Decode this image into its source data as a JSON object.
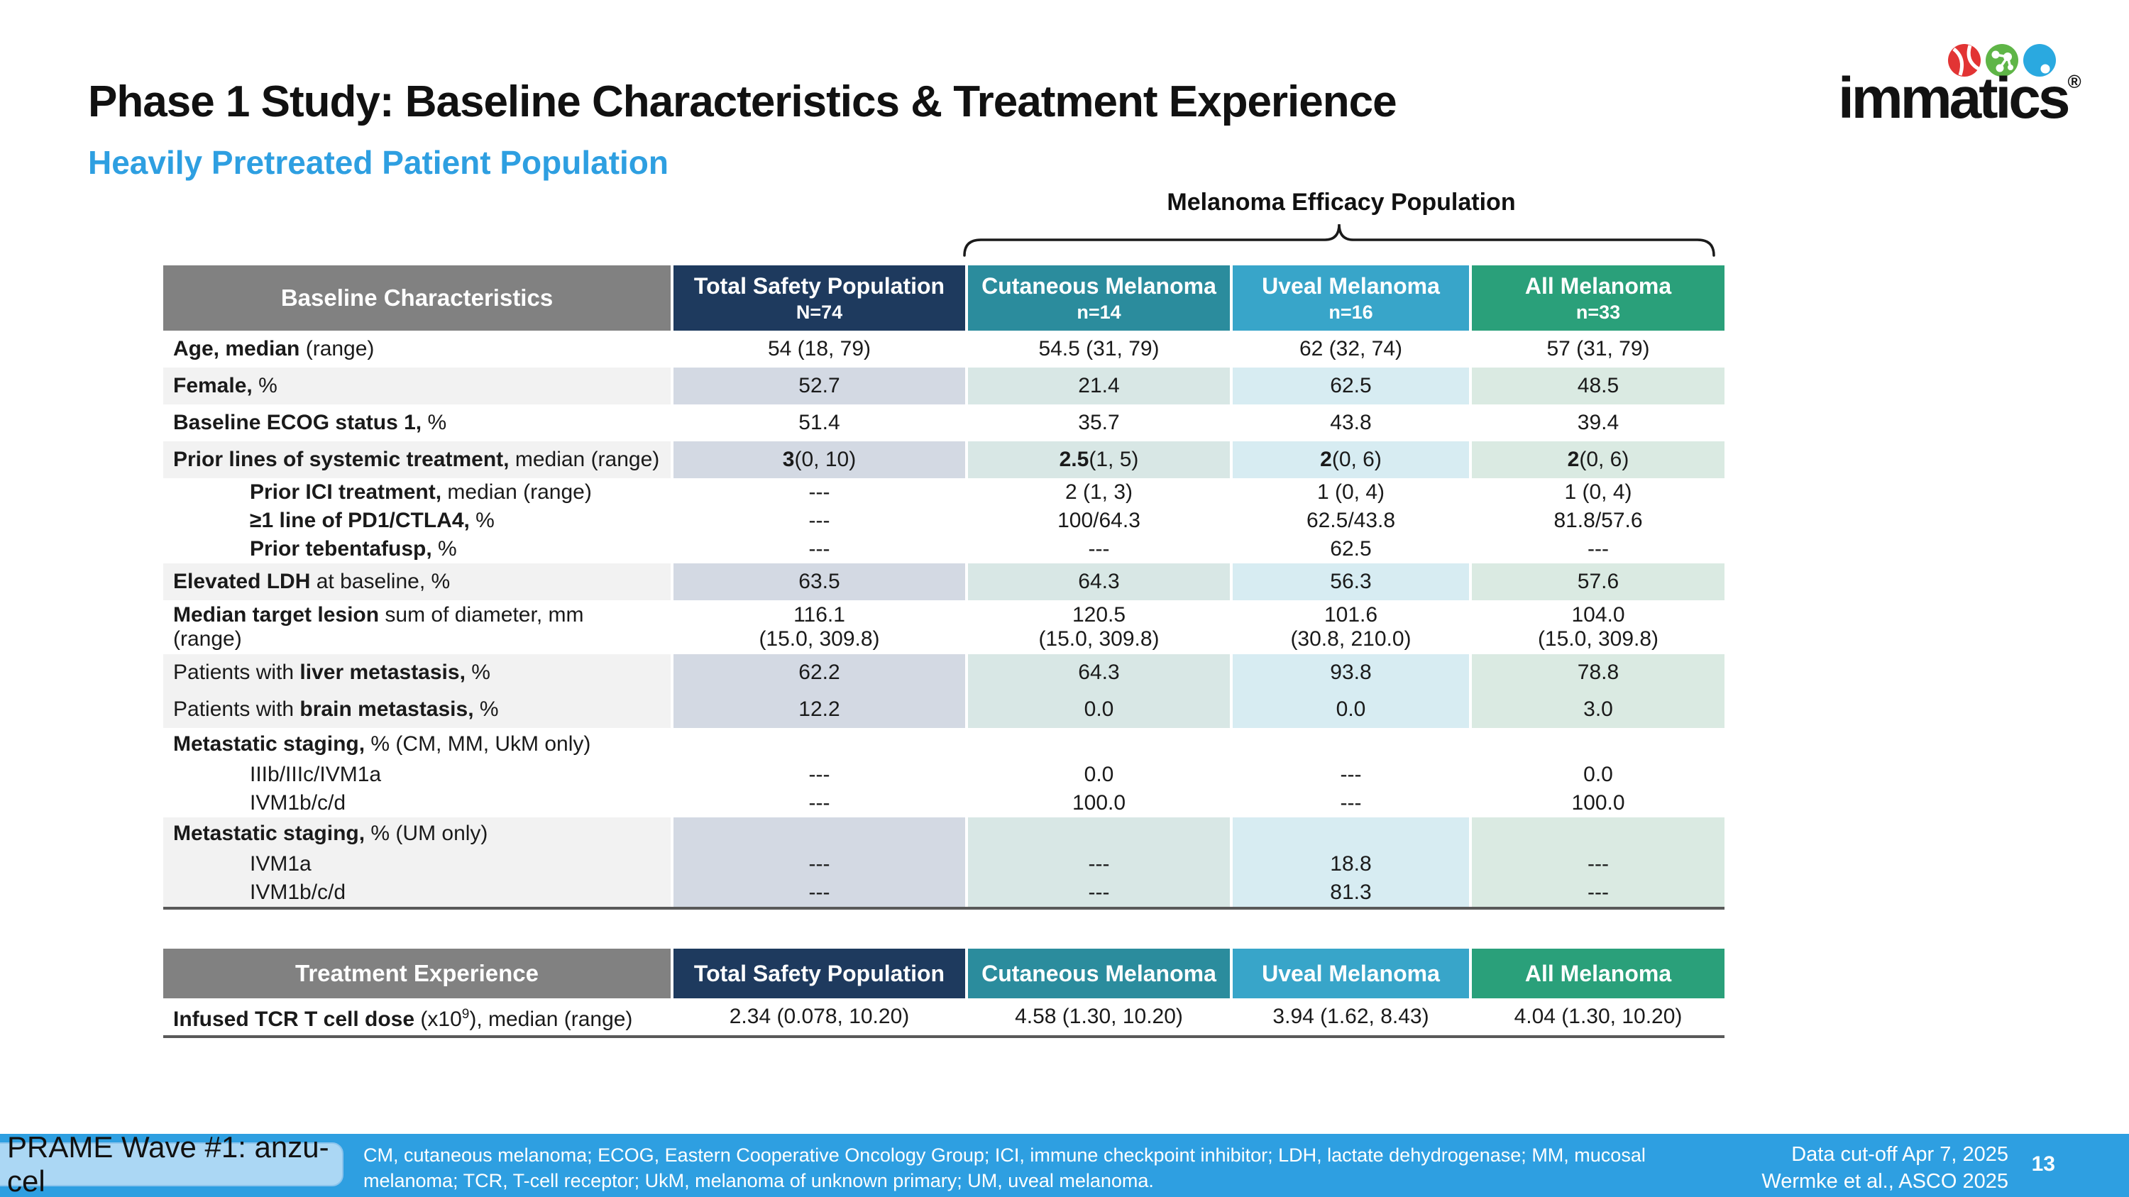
{
  "slide": {
    "title": "Phase 1 Study: Baseline Characteristics & Treatment Experience",
    "subtitle": "Heavily Pretreated Patient Population",
    "page_number": "13"
  },
  "logo": {
    "brand": "immatics",
    "registered": "®"
  },
  "efficacy_banner": {
    "label": "Melanoma Efficacy Population"
  },
  "colors": {
    "header_gray": "#818181",
    "row_shade": "#f2f2f2",
    "subtitle_blue": "#2e9fe1",
    "footer_blue": "#2e9fe1",
    "badge_bg": "#abd7f4",
    "rule_gray": "#595959"
  },
  "baseline_table": {
    "header": {
      "label": "Baseline Characteristics",
      "columns": [
        {
          "title": "Total Safety Population",
          "n": "N=74",
          "bg": "#1e3a5e",
          "tint": "#d3d9e3"
        },
        {
          "title": "Cutaneous Melanoma",
          "n": "n=14",
          "bg": "#2b8c9d",
          "tint": "#d8e7e5"
        },
        {
          "title": "Uveal Melanoma",
          "n": "n=16",
          "bg": "#38a5c9",
          "tint": "#d7ecf2"
        },
        {
          "title": "All Melanoma",
          "n": "n=33",
          "bg": "#2aa07a",
          "tint": "#daeae2"
        }
      ]
    },
    "rows": [
      {
        "h": "rn",
        "shaded": false,
        "label_parts": [
          {
            "t": "Age, median",
            "b": true
          },
          {
            "t": " (range)",
            "b": false
          }
        ],
        "values": [
          "54 (18, 79)",
          "54.5 (31, 79)",
          "62 (32, 74)",
          "57 (31, 79)"
        ]
      },
      {
        "h": "rn",
        "shaded": true,
        "label_parts": [
          {
            "t": "Female,",
            "b": true
          },
          {
            "t": " %",
            "b": false
          }
        ],
        "values": [
          "52.7",
          "21.4",
          "62.5",
          "48.5"
        ]
      },
      {
        "h": "rn",
        "shaded": false,
        "label_parts": [
          {
            "t": "Baseline ECOG status 1,",
            "b": true
          },
          {
            "t": " %",
            "b": false
          }
        ],
        "values": [
          "51.4",
          "35.7",
          "43.8",
          "39.4"
        ]
      },
      {
        "h": "rn",
        "shaded": true,
        "label_parts": [
          {
            "t": "Prior lines of systemic treatment,",
            "b": true
          },
          {
            "t": " median (range)",
            "b": false
          }
        ],
        "values": [
          {
            "b": "3",
            "r": " (0, 10)"
          },
          {
            "b": "2.5",
            "r": " (1, 5)"
          },
          {
            "b": "2",
            "r": " (0, 6)"
          },
          {
            "b": "2",
            "r": " (0, 6)"
          }
        ]
      },
      {
        "h": "rs",
        "shaded": false,
        "indent": true,
        "label_parts": [
          {
            "t": "Prior ICI treatment,",
            "b": true
          },
          {
            "t": " median (range)",
            "b": false
          }
        ],
        "values": [
          "---",
          "2 (1, 3)",
          "1 (0, 4)",
          "1 (0, 4)"
        ]
      },
      {
        "h": "rs",
        "shaded": false,
        "indent": true,
        "label_parts": [
          {
            "t": "≥1 line of PD1/CTLA4,",
            "b": true
          },
          {
            "t": " %",
            "b": false
          }
        ],
        "values": [
          "---",
          "100/64.3",
          "62.5/43.8",
          "81.8/57.6"
        ]
      },
      {
        "h": "rs",
        "shaded": false,
        "indent": true,
        "label_parts": [
          {
            "t": "Prior tebentafusp,",
            "b": true
          },
          {
            "t": " %",
            "b": false
          }
        ],
        "values": [
          "---",
          "---",
          "62.5",
          "---"
        ]
      },
      {
        "h": "rn",
        "shaded": true,
        "label_parts": [
          {
            "t": "Elevated LDH",
            "b": true
          },
          {
            "t": " at baseline, %",
            "b": false
          }
        ],
        "values": [
          "63.5",
          "64.3",
          "56.3",
          "57.6"
        ]
      },
      {
        "h": "rt",
        "shaded": false,
        "label_parts": [
          {
            "t": "Median target lesion",
            "b": true
          },
          {
            "t": " sum of diameter, mm\n(range)",
            "b": false
          }
        ],
        "values": [
          "116.1\n(15.0, 309.8)",
          "120.5\n(15.0, 309.8)",
          "101.6\n(30.8, 210.0)",
          "104.0\n(15.0, 309.8)"
        ]
      },
      {
        "h": "rn",
        "shaded": true,
        "label_parts": [
          {
            "t": "Patients with ",
            "b": false
          },
          {
            "t": "liver metastasis,",
            "b": true
          },
          {
            "t": " %",
            "b": false
          }
        ],
        "values": [
          "62.2",
          "64.3",
          "93.8",
          "78.8"
        ]
      },
      {
        "h": "rn",
        "shaded": true,
        "label_parts": [
          {
            "t": "Patients with ",
            "b": false
          },
          {
            "t": "brain metastasis,",
            "b": true
          },
          {
            "t": " %",
            "b": false
          }
        ],
        "values": [
          "12.2",
          "0.0",
          "0.0",
          "3.0"
        ]
      },
      {
        "h": "rg",
        "shaded": false,
        "label_parts": [
          {
            "t": "Metastatic staging,",
            "b": true
          },
          {
            "t": " % (CM, MM, UkM only)",
            "b": false
          }
        ],
        "values": [
          "",
          "",
          "",
          ""
        ]
      },
      {
        "h": "rs",
        "shaded": false,
        "indent": true,
        "label_parts": [
          {
            "t": "IIIb/IIIc/IVM1a",
            "b": false
          }
        ],
        "values": [
          "---",
          "0.0",
          "---",
          "0.0"
        ]
      },
      {
        "h": "rs",
        "shaded": false,
        "indent": true,
        "label_parts": [
          {
            "t": "IVM1b/c/d",
            "b": false
          }
        ],
        "values": [
          "---",
          "100.0",
          "---",
          "100.0"
        ]
      },
      {
        "h": "rg",
        "shaded": true,
        "label_parts": [
          {
            "t": "Metastatic staging,",
            "b": true
          },
          {
            "t": " % (UM only)",
            "b": false
          }
        ],
        "values": [
          "",
          "",
          "",
          ""
        ]
      },
      {
        "h": "rs",
        "shaded": true,
        "indent": true,
        "label_parts": [
          {
            "t": "IVM1a",
            "b": false
          }
        ],
        "values": [
          "---",
          "---",
          "18.8",
          "---"
        ]
      },
      {
        "h": "rs",
        "shaded": true,
        "indent": true,
        "label_parts": [
          {
            "t": "IVM1b/c/d",
            "b": false
          }
        ],
        "values": [
          "---",
          "---",
          "81.3",
          "---"
        ]
      }
    ]
  },
  "treatment_table": {
    "header": {
      "label": "Treatment Experience",
      "columns": [
        {
          "title": "Total Safety Population",
          "bg": "#1e3a5e",
          "tint": "#d3d9e3"
        },
        {
          "title": "Cutaneous Melanoma",
          "bg": "#2b8c9d",
          "tint": "#d8e7e5"
        },
        {
          "title": "Uveal Melanoma",
          "bg": "#38a5c9",
          "tint": "#d7ecf2"
        },
        {
          "title": "All Melanoma",
          "bg": "#2aa07a",
          "tint": "#daeae2"
        }
      ]
    },
    "rows": [
      {
        "h": "rn",
        "shaded": false,
        "label_parts": [
          {
            "t": "Infused TCR T cell dose ",
            "b": true
          },
          {
            "t": "(x10",
            "b": false
          },
          {
            "t": "9",
            "b": false,
            "sup": true
          },
          {
            "t": "), median (range)",
            "b": false
          }
        ],
        "values": [
          "2.34 (0.078, 10.20)",
          "4.58 (1.30, 10.20)",
          "3.94 (1.62, 8.43)",
          "4.04 (1.30, 10.20)"
        ]
      }
    ]
  },
  "footer": {
    "badge": "PRAME Wave #1: anzu-cel",
    "footnote_line1": "CM, cutaneous melanoma; ECOG, Eastern Cooperative Oncology Group; ICI, immune checkpoint inhibitor; LDH, lactate dehydrogenase; MM, mucosal",
    "footnote_line2": "melanoma; TCR, T-cell receptor; UkM, melanoma of unknown primary; UM, uveal melanoma.",
    "data_cutoff": "Data cut-off Apr 7, 2025",
    "citation": "Wermke et al., ASCO 2025"
  }
}
